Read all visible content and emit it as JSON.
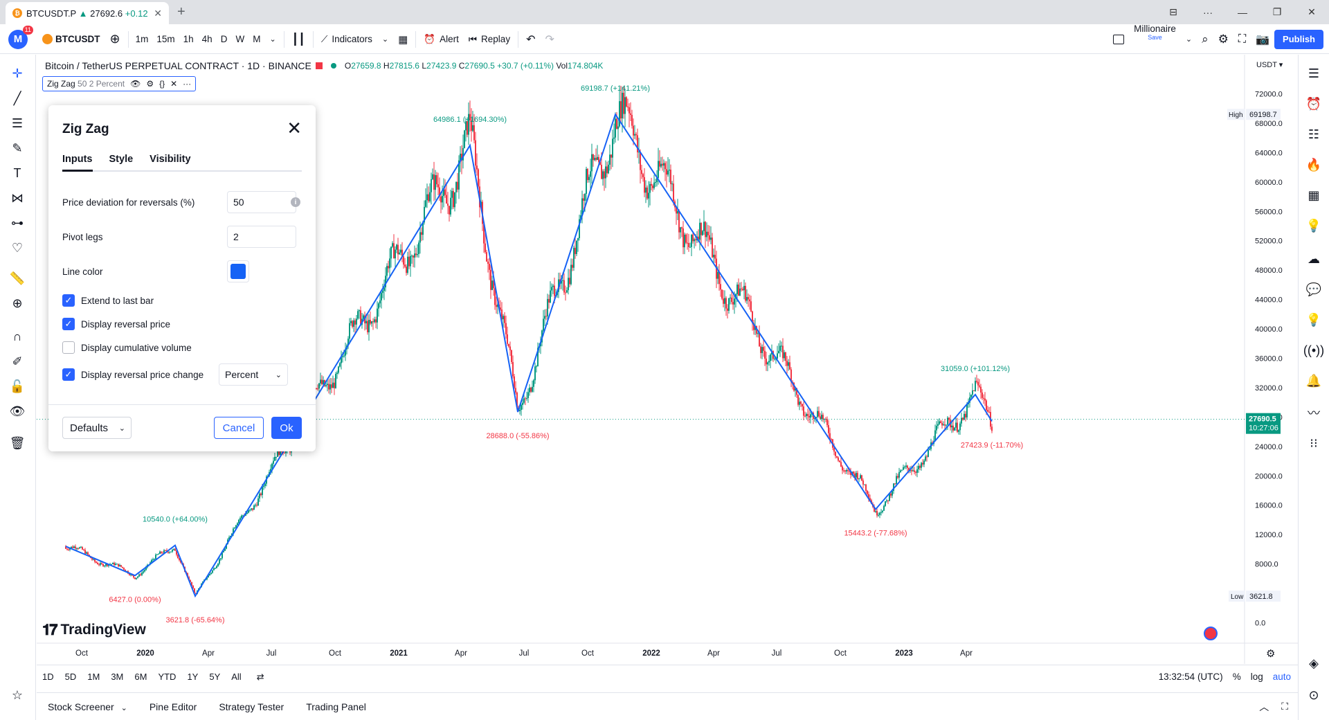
{
  "browser": {
    "tab_title_symbol": "BTCUSDT.P",
    "tab_title_price": "27692.6",
    "tab_title_change": "+0.12",
    "fav_glyph": "₿",
    "close_glyph": "✕",
    "new_tab_glyph": "+",
    "controls": [
      "⊟",
      "···",
      "—",
      "❐",
      "✕"
    ]
  },
  "header": {
    "avatar_letter": "M",
    "notification_count": "11",
    "symbol": "BTCUSDT",
    "intervals": [
      "1m",
      "15m",
      "1h",
      "4h",
      "D",
      "W",
      "M"
    ],
    "active_interval": "D",
    "indicators_label": "Indicators",
    "alert_label": "Alert",
    "replay_label": "Replay",
    "layout_name": "Millionaire",
    "save_label": "Save",
    "publish_label": "Publish"
  },
  "legend": {
    "title": "Bitcoin / TetherUS PERPETUAL CONTRACT · 1D · BINANCE",
    "open_label": "O",
    "open": "27659.8",
    "high_label": "H",
    "high": "27815.6",
    "low_label": "L",
    "low": "27423.9",
    "close_label": "C",
    "close": "27690.5",
    "change": "+30.7 (+0.11%)",
    "vol_label": "Vol",
    "volume": "174.804K"
  },
  "indicator_pill": {
    "name": "Zig Zag",
    "params": "50 2 Percent"
  },
  "branding": {
    "logo_text": "TradingView"
  },
  "dialog": {
    "title": "Zig Zag",
    "tabs": [
      "Inputs",
      "Style",
      "Visibility"
    ],
    "price_deviation_label": "Price deviation for reversals (%)",
    "price_deviation_value": "50",
    "pivot_legs_label": "Pivot legs",
    "pivot_legs_value": "2",
    "line_color_label": "Line color",
    "line_color": "#1562f5",
    "extend_label": "Extend to last bar",
    "display_price_label": "Display reversal price",
    "display_volume_label": "Display cumulative volume",
    "display_change_label": "Display reversal price change",
    "change_mode": "Percent",
    "defaults_label": "Defaults",
    "cancel_label": "Cancel",
    "ok_label": "Ok",
    "extend_checked": true,
    "display_price_checked": true,
    "display_volume_checked": false,
    "display_change_checked": true
  },
  "price_axis": {
    "currency": "USDT",
    "ticks": [
      "72000.0",
      "68000.0",
      "64000.0",
      "60000.0",
      "56000.0",
      "52000.0",
      "48000.0",
      "44000.0",
      "40000.0",
      "36000.0",
      "32000.0",
      "28000.0",
      "24000.0",
      "20000.0",
      "16000.0",
      "12000.0",
      "8000.0",
      "4000.0",
      "0.0"
    ],
    "high_label": "High",
    "high_value": "69198.7",
    "low_label": "Low",
    "low_value": "3621.8",
    "last_price": "27690.5",
    "countdown": "10:27:06"
  },
  "time_axis": {
    "ticks": [
      "Oct",
      "2020",
      "Apr",
      "Jul",
      "Oct",
      "2021",
      "Apr",
      "Jul",
      "Oct",
      "2022",
      "Apr",
      "Jul",
      "Oct",
      "2023",
      "Apr"
    ]
  },
  "chart_data": {
    "type": "line",
    "title": "Bitcoin / TetherUS PERPETUAL CONTRACT · 1D · BINANCE",
    "xlabel": "",
    "ylabel": "",
    "ylim": [
      0,
      74000
    ],
    "up_color": "#089981",
    "down_color": "#f23645",
    "zigzag_color": "#1562f5",
    "series": [
      {
        "x": [
          "2019-09-08",
          "2019-12-17",
          "2020-02-13",
          "2020-03-13",
          "2021-04-14",
          "2021-06-22",
          "2021-11-10",
          "2022-11-21",
          "2023-04-14",
          "2023-05-08"
        ],
        "values": [
          10400,
          6427.0,
          10540.0,
          3621.8,
          64986.1,
          28688.0,
          69198.7,
          15443.2,
          31059.0,
          27423.9
        ]
      }
    ],
    "pivot_labels": [
      {
        "text": "6427.0 (0.00%)",
        "type": "low"
      },
      {
        "text": "10540.0 (+64.00%)",
        "type": "high"
      },
      {
        "text": "3621.8 (-65.64%)",
        "type": "low"
      },
      {
        "text": "64986.1 (+1694.30%)",
        "type": "high"
      },
      {
        "text": "28688.0 (-55.86%)",
        "type": "low"
      },
      {
        "text": "69198.7 (+141.21%)",
        "type": "high"
      },
      {
        "text": "15443.2 (-77.68%)",
        "type": "low"
      },
      {
        "text": "31059.0 (+101.12%)",
        "type": "high"
      },
      {
        "text": "27423.9 (-11.70%)",
        "type": "low"
      }
    ]
  },
  "range_bar": {
    "ranges": [
      "1D",
      "5D",
      "1M",
      "3M",
      "6M",
      "YTD",
      "1Y",
      "5Y",
      "All"
    ],
    "time": "13:32:54 (UTC)",
    "percent_label": "%",
    "log_label": "log",
    "auto_label": "auto"
  },
  "bottom_panel": {
    "tabs": [
      "Stock Screener",
      "Pine Editor",
      "Strategy Tester",
      "Trading Panel"
    ]
  }
}
